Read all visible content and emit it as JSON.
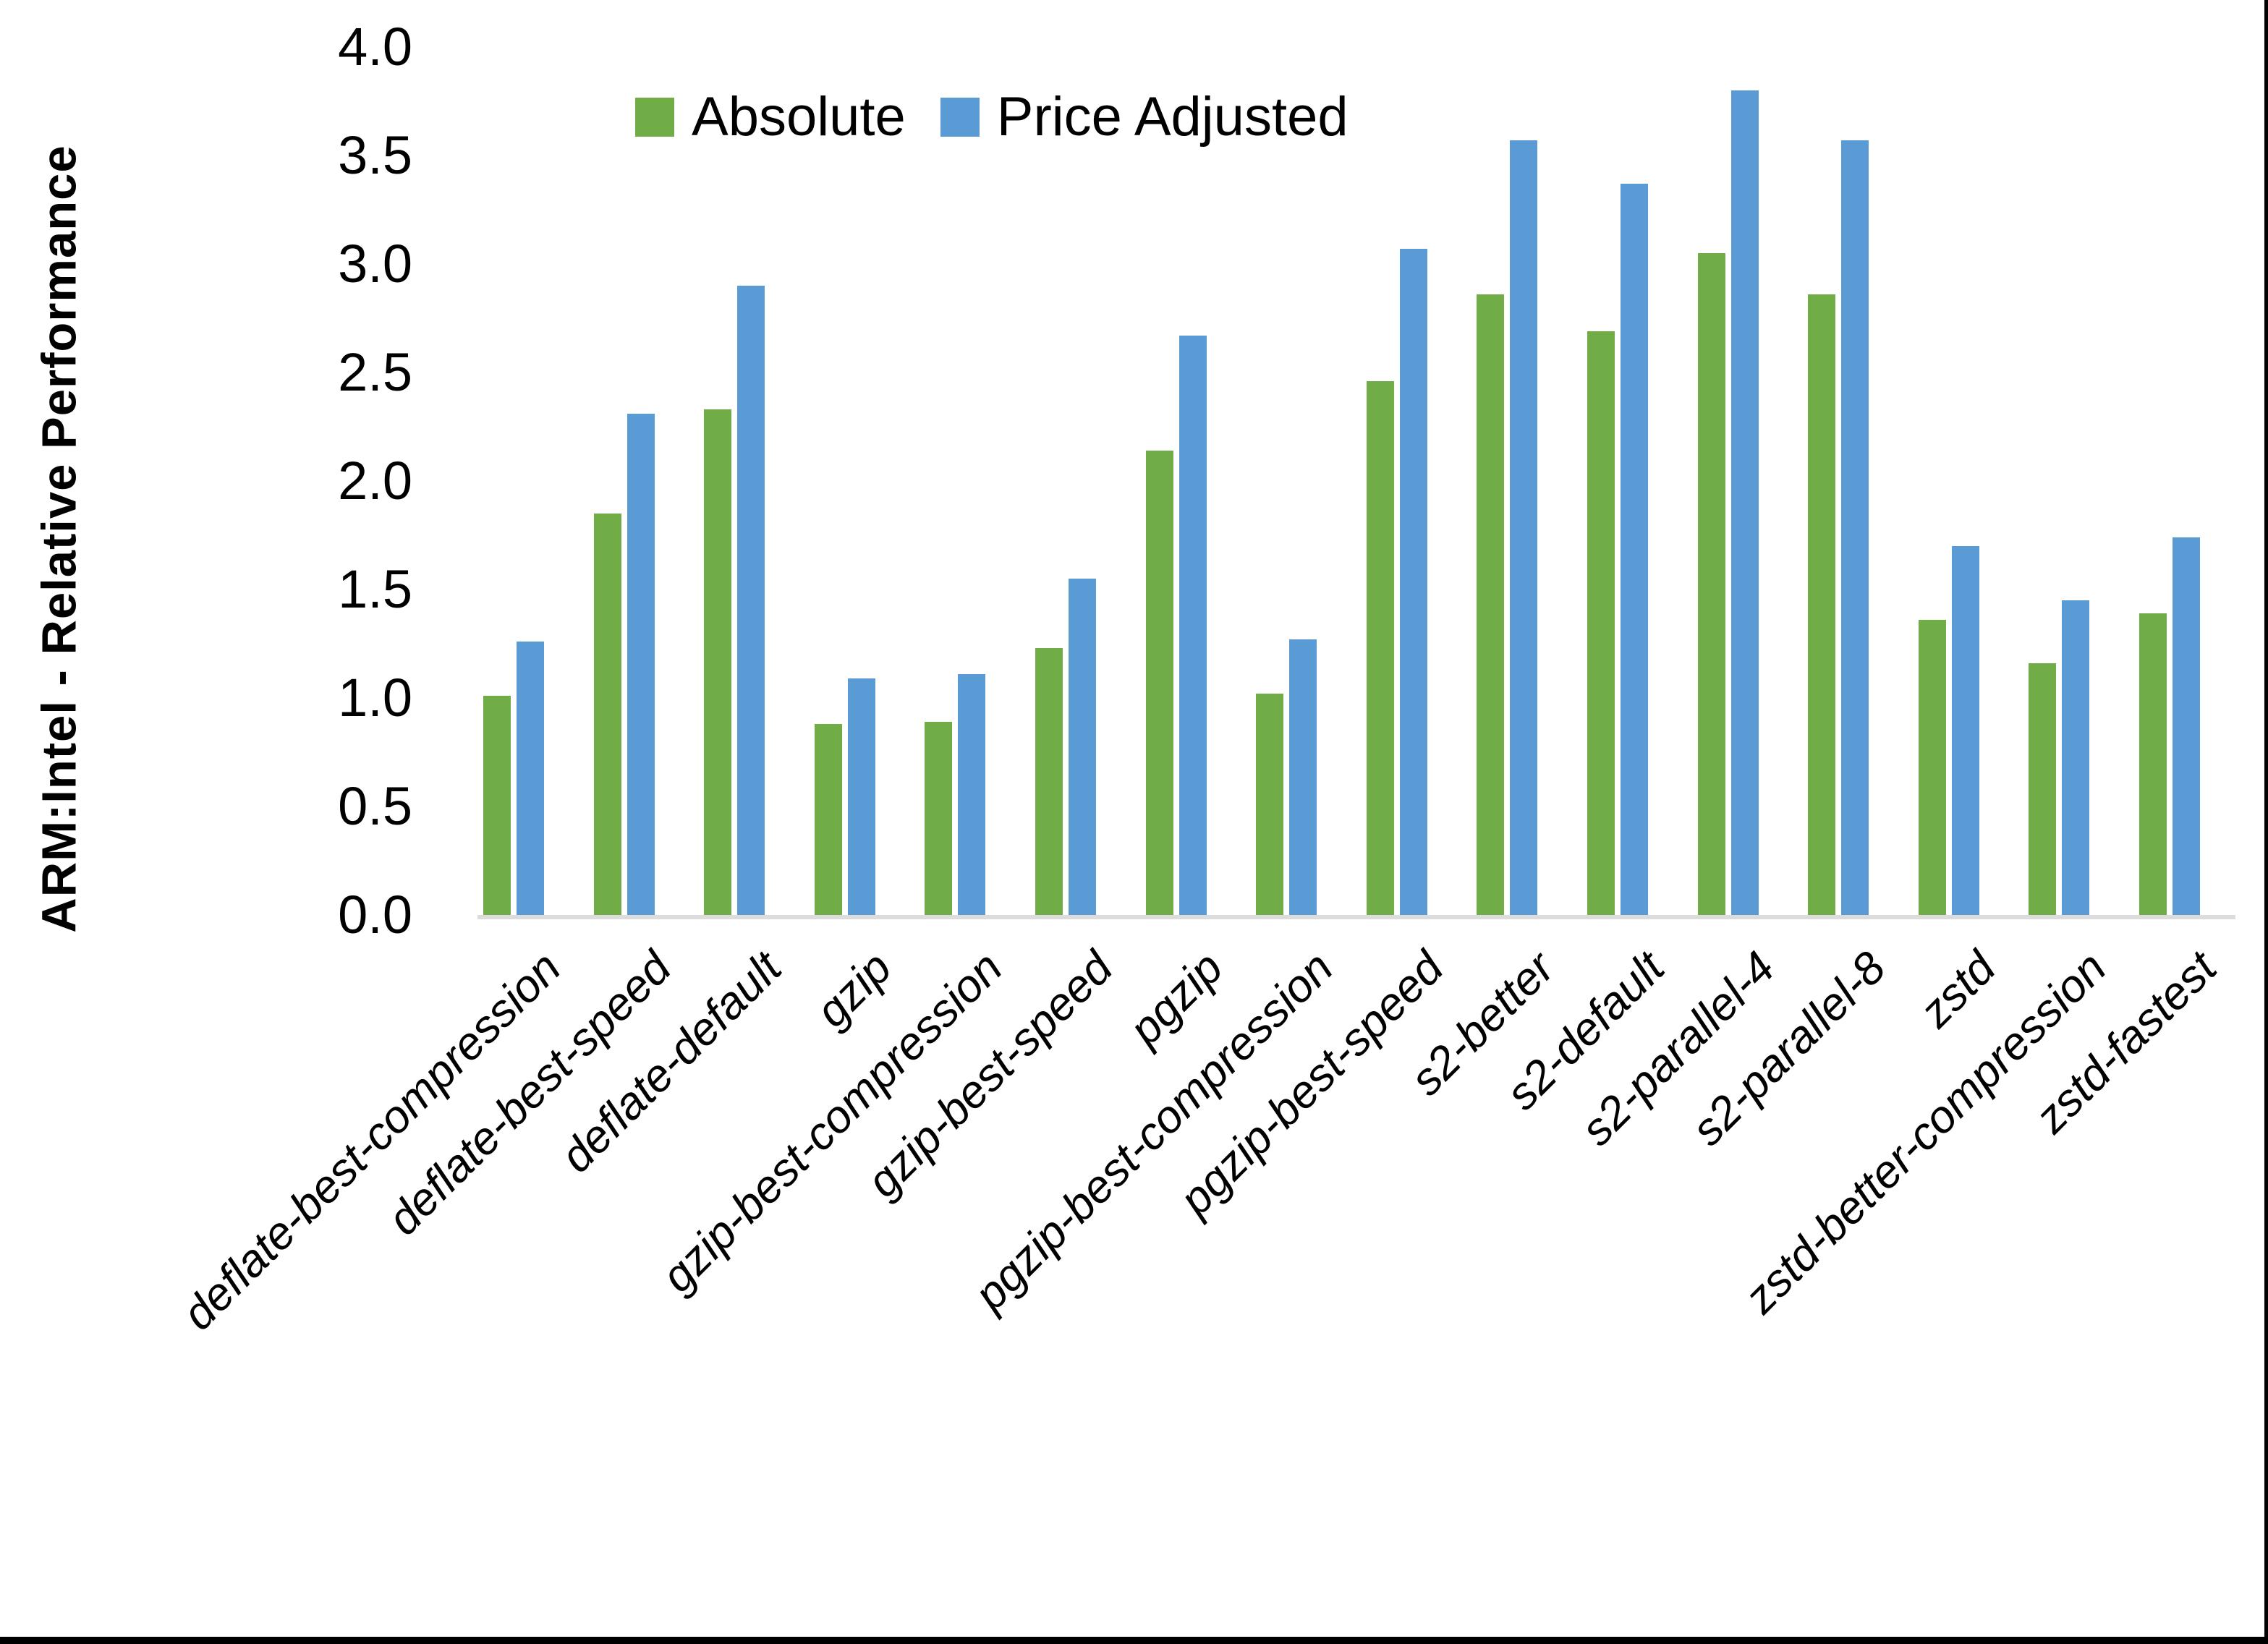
{
  "figure": {
    "background": "#ffffff",
    "border_color": "#000000"
  },
  "legend": {
    "items": [
      {
        "label": "Absolute",
        "color": "#70AD47"
      },
      {
        "label": "Price Adjusted",
        "color": "#5B9BD5"
      }
    ]
  },
  "chart_data": {
    "type": "bar",
    "title": "",
    "xlabel": "",
    "ylabel": "ARM:Intel - Relative Performance",
    "ylim": [
      0.0,
      4.0
    ],
    "y_tick_labels": [
      "4.0",
      "3.5",
      "3.0",
      "2.5",
      "2.0",
      "1.5",
      "1.0",
      "0.5",
      "0.0"
    ],
    "grid": false,
    "legend_position": "top-center",
    "axis_line_color": "#DCDCDC",
    "categories": [
      "deflate-best-compression",
      "deflate-best-speed",
      "deflate-default",
      "gzip",
      "gzip-best-compression",
      "gzip-best-speed",
      "pgzip",
      "pgzip-best-compression",
      "pgzip-best-speed",
      "s2-better",
      "s2-default",
      "s2-parallel-4",
      "s2-parallel-8",
      "zstd",
      "zstd-better-compression",
      "zstd-fastest"
    ],
    "series": [
      {
        "name": "Absolute",
        "color": "#70AD47",
        "values": [
          1.01,
          1.85,
          2.33,
          0.88,
          0.89,
          1.23,
          2.14,
          1.02,
          2.46,
          2.86,
          2.69,
          3.05,
          2.86,
          1.36,
          1.16,
          1.39
        ]
      },
      {
        "name": "Price Adjusted",
        "color": "#5B9BD5",
        "values": [
          1.26,
          2.31,
          2.9,
          1.09,
          1.11,
          1.55,
          2.67,
          1.27,
          3.07,
          3.57,
          3.37,
          3.8,
          3.57,
          1.7,
          1.45,
          1.74
        ]
      }
    ]
  }
}
